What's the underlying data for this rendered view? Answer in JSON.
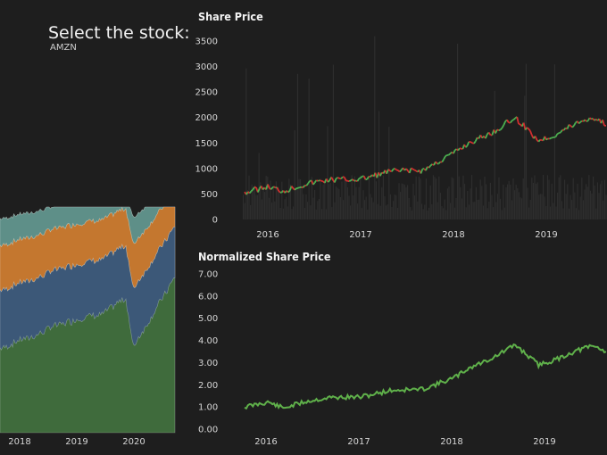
{
  "selector": {
    "label": "Select the stock:",
    "value": "AMZN"
  },
  "colors": {
    "background": "#1e1e1e",
    "up": "#4caf50",
    "down": "#d32f2f",
    "norm_line": "#5fb04a",
    "area": [
      "#3f6b3c",
      "#5e8f88",
      "#c4772f",
      "#3c5878"
    ]
  },
  "chart_data": [
    {
      "type": "area",
      "title": "",
      "stacked": true,
      "x_ticks": [
        "2018",
        "2019",
        "2020"
      ],
      "series_count": 4,
      "grid": false
    },
    {
      "type": "candlestick",
      "title": "Share Price",
      "y_ticks": [
        "0",
        "500",
        "1000",
        "1500",
        "2000",
        "2500",
        "3000",
        "3500"
      ],
      "x_ticks": [
        "2016",
        "2017",
        "2018",
        "2019"
      ],
      "ylim": [
        0,
        3500
      ],
      "overlay": "volume",
      "points": [
        {
          "x": "2015-10",
          "y": 530
        },
        {
          "x": "2016-01",
          "y": 640
        },
        {
          "x": "2016-03",
          "y": 560
        },
        {
          "x": "2016-06",
          "y": 700
        },
        {
          "x": "2016-09",
          "y": 780
        },
        {
          "x": "2017-01",
          "y": 790
        },
        {
          "x": "2017-05",
          "y": 950
        },
        {
          "x": "2017-09",
          "y": 960
        },
        {
          "x": "2018-01",
          "y": 1300
        },
        {
          "x": "2018-03",
          "y": 1500
        },
        {
          "x": "2018-06",
          "y": 1700
        },
        {
          "x": "2018-09",
          "y": 2000
        },
        {
          "x": "2018-12",
          "y": 1550
        },
        {
          "x": "2019-02",
          "y": 1650
        },
        {
          "x": "2019-05",
          "y": 1900
        },
        {
          "x": "2019-07",
          "y": 2000
        },
        {
          "x": "2019-10",
          "y": 1780
        }
      ]
    },
    {
      "type": "line",
      "title": "Normalized Share Price",
      "y_ticks": [
        "0.00",
        "1.00",
        "2.00",
        "3.00",
        "4.00",
        "5.00",
        "6.00",
        "7.00"
      ],
      "x_ticks": [
        "2016",
        "2017",
        "2018",
        "2019"
      ],
      "ylim": [
        0,
        7
      ],
      "points": [
        {
          "x": "2015-10",
          "y": 1.0
        },
        {
          "x": "2016-01",
          "y": 1.22
        },
        {
          "x": "2016-03",
          "y": 0.95
        },
        {
          "x": "2016-06",
          "y": 1.25
        },
        {
          "x": "2016-09",
          "y": 1.42
        },
        {
          "x": "2017-01",
          "y": 1.45
        },
        {
          "x": "2017-05",
          "y": 1.75
        },
        {
          "x": "2017-09",
          "y": 1.8
        },
        {
          "x": "2018-01",
          "y": 2.3
        },
        {
          "x": "2018-03",
          "y": 2.75
        },
        {
          "x": "2018-06",
          "y": 3.2
        },
        {
          "x": "2018-09",
          "y": 3.8
        },
        {
          "x": "2018-12",
          "y": 2.9
        },
        {
          "x": "2019-02",
          "y": 3.1
        },
        {
          "x": "2019-05",
          "y": 3.55
        },
        {
          "x": "2019-07",
          "y": 3.75
        },
        {
          "x": "2019-10",
          "y": 3.35
        }
      ]
    }
  ]
}
